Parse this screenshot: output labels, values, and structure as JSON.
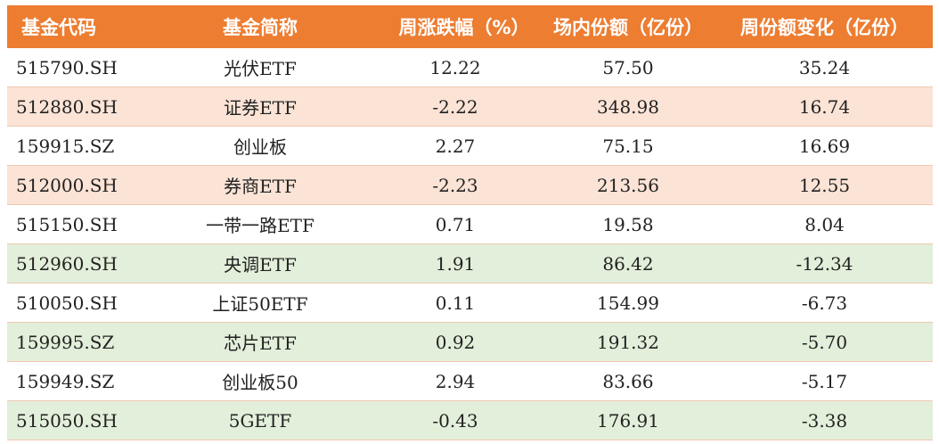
{
  "headers": [
    "基金代码",
    "基金简称",
    "周涨跌幅（%）",
    "场内份额（亿份）",
    "周份额变化（亿份）"
  ],
  "colors": {
    "header_bg": "#ed7d31",
    "pink_row": "#fbe3d6",
    "green_row": "#e2efda",
    "white_row": "#ffffff"
  },
  "rows": [
    {
      "code": "515790.SH",
      "name": "光伏ETF",
      "change": "12.22",
      "shares": "57.50",
      "share_change": "35.24",
      "bg": "white"
    },
    {
      "code": "512880.SH",
      "name": "证券ETF",
      "change": "-2.22",
      "shares": "348.98",
      "share_change": "16.74",
      "bg": "pink"
    },
    {
      "code": "159915.SZ",
      "name": "创业板",
      "change": "2.27",
      "shares": "75.15",
      "share_change": "16.69",
      "bg": "white"
    },
    {
      "code": "512000.SH",
      "name": "券商ETF",
      "change": "-2.23",
      "shares": "213.56",
      "share_change": "12.55",
      "bg": "pink"
    },
    {
      "code": "515150.SH",
      "name": "一带一路ETF",
      "change": "0.71",
      "shares": "19.58",
      "share_change": "8.04",
      "bg": "white"
    },
    {
      "code": "512960.SH",
      "name": "央调ETF",
      "change": "1.91",
      "shares": "86.42",
      "share_change": "-12.34",
      "bg": "green"
    },
    {
      "code": "510050.SH",
      "name": "上证50ETF",
      "change": "0.11",
      "shares": "154.99",
      "share_change": "-6.73",
      "bg": "white"
    },
    {
      "code": "159995.SZ",
      "name": "芯片ETF",
      "change": "0.92",
      "shares": "191.32",
      "share_change": "-5.70",
      "bg": "green"
    },
    {
      "code": "159949.SZ",
      "name": "创业板50",
      "change": "2.94",
      "shares": "83.66",
      "share_change": "-5.17",
      "bg": "white"
    },
    {
      "code": "515050.SH",
      "name": "5GETF",
      "change": "-0.43",
      "shares": "176.91",
      "share_change": "-3.38",
      "bg": "green"
    }
  ]
}
